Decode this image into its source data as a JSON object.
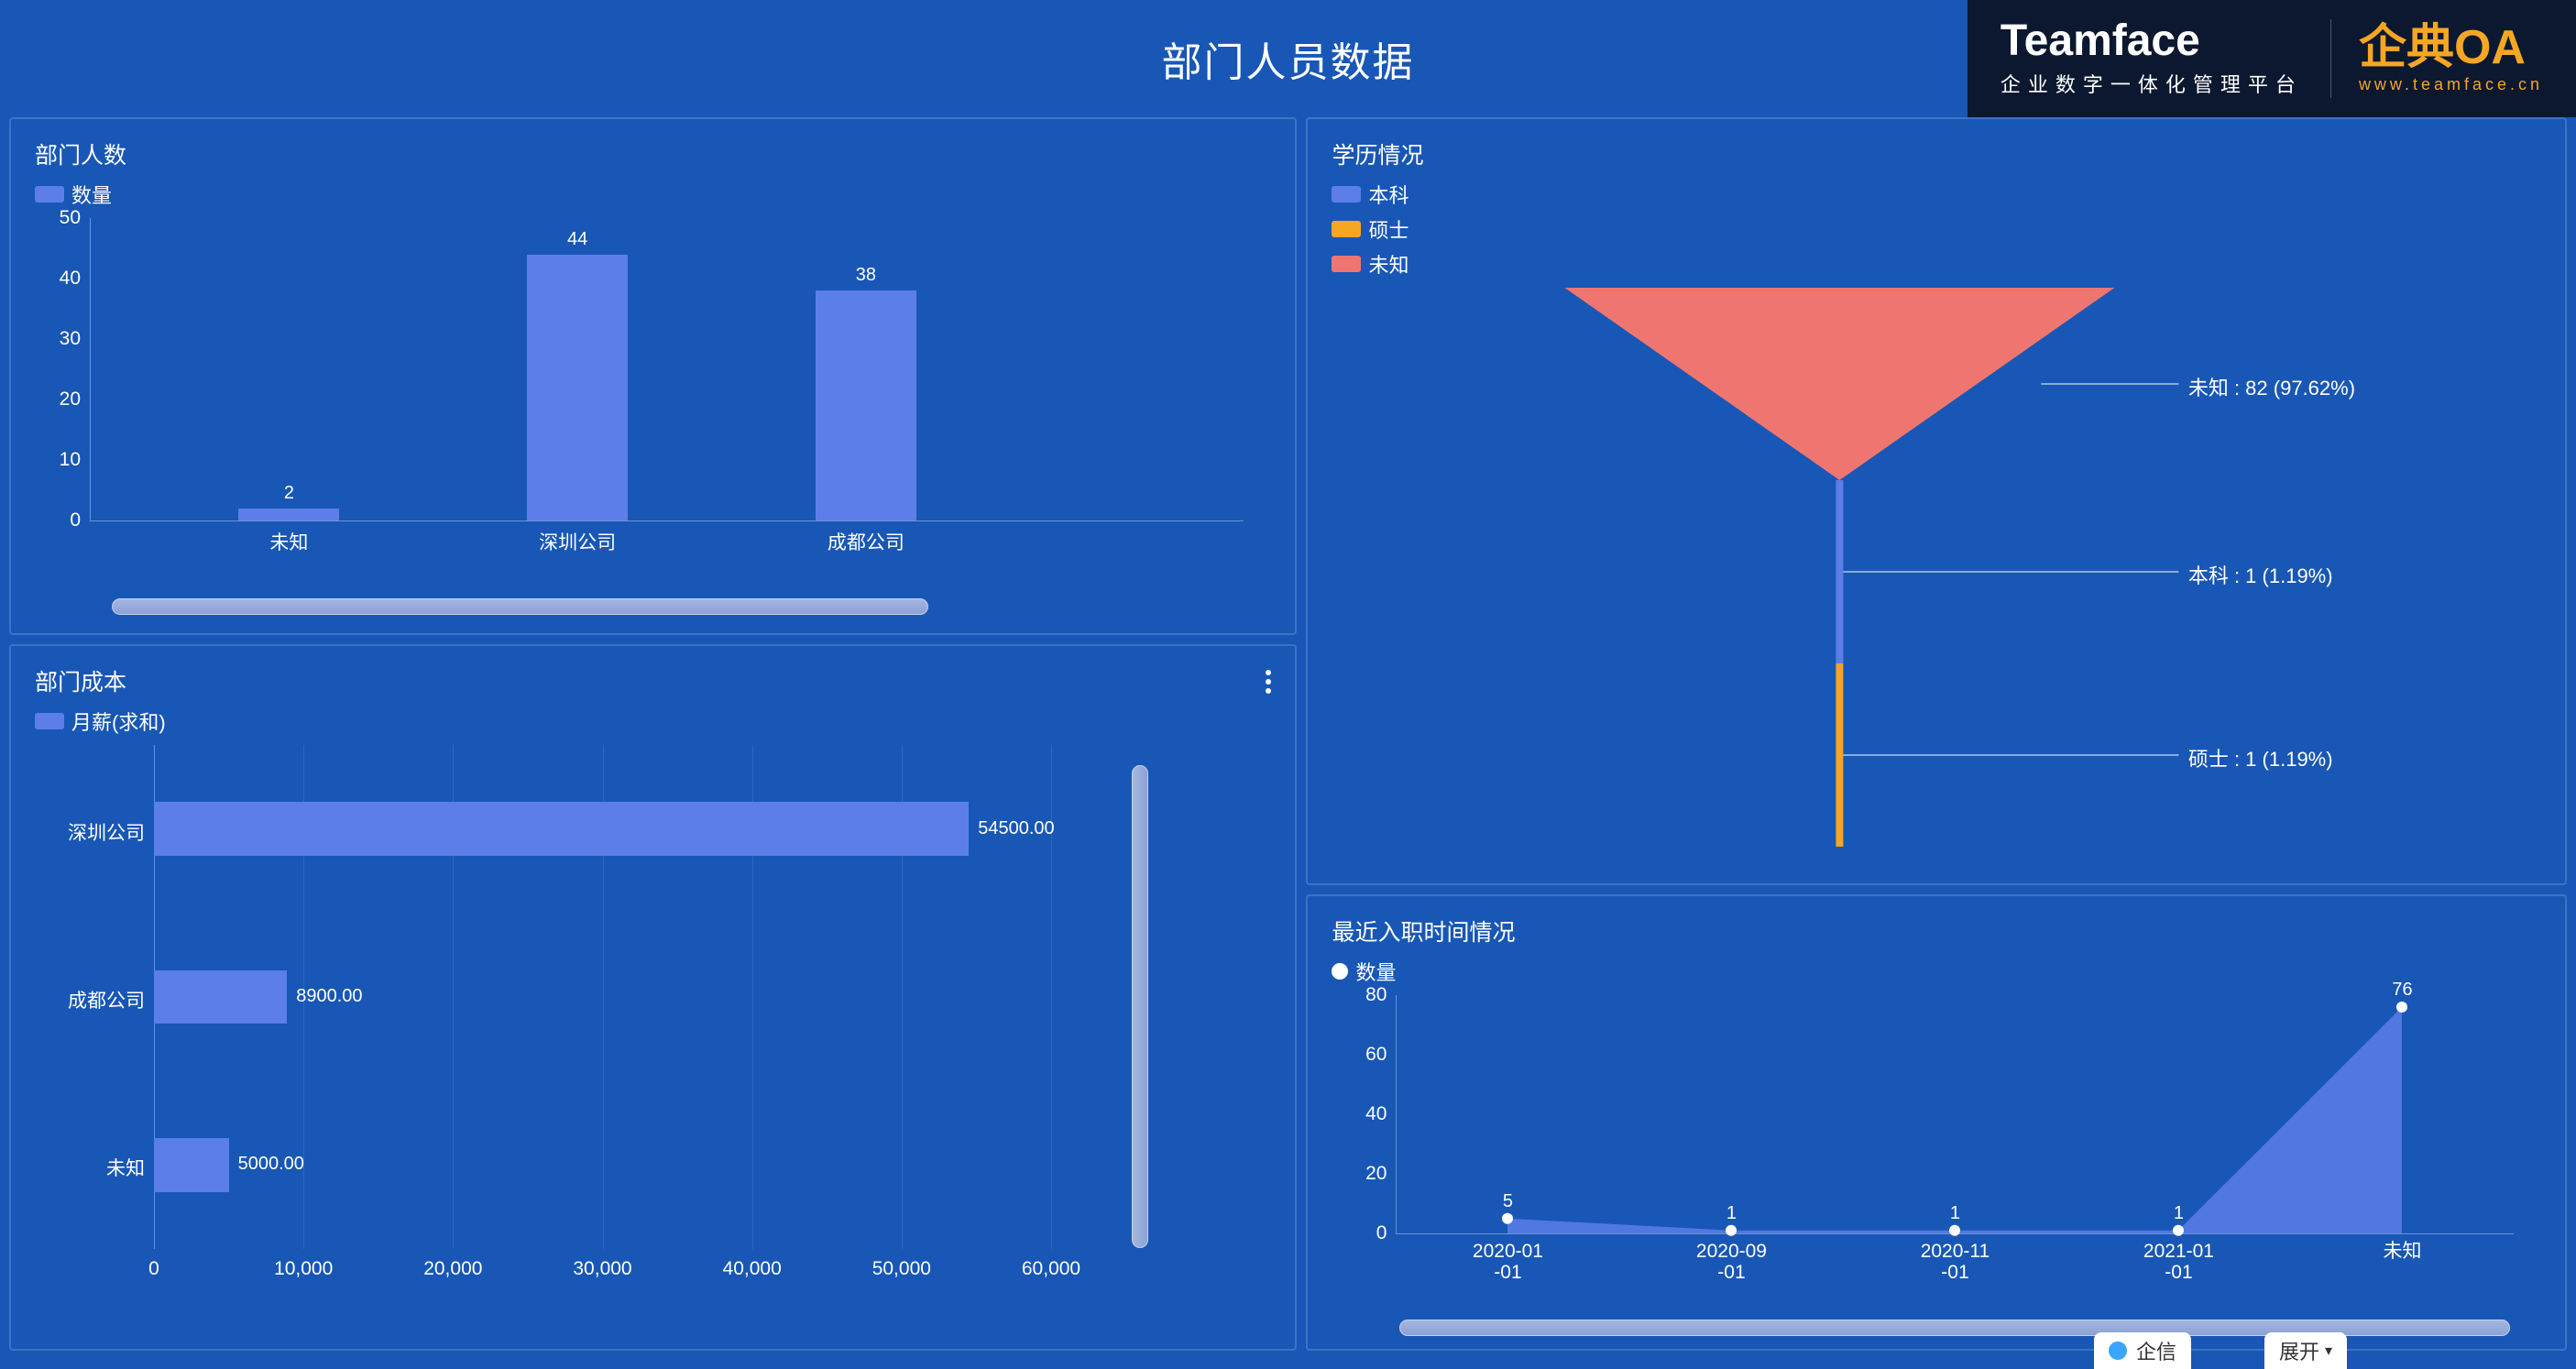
{
  "page": {
    "title": "部门人员数据",
    "background": "#1857b5",
    "panel_border": "#3c73c6"
  },
  "logo": {
    "brand": "Teamface",
    "brand_sub": "企业数字一体化管理平台",
    "suite": "企典OA",
    "url": "www.teamface.cn"
  },
  "panel_a": {
    "title": "部门人数",
    "legend_label": "数量",
    "legend_color": "#5c7ee8",
    "type": "bar",
    "categories": [
      "未知",
      "深圳公司",
      "成都公司"
    ],
    "values": [
      2,
      44,
      38
    ],
    "ylim": [
      0,
      50
    ],
    "ytick_step": 10,
    "bar_color": "#5c7ee8",
    "label_fontsize": 20,
    "axis_fontsize": 21,
    "bar_width_ratio": 0.16
  },
  "panel_b": {
    "title": "学历情况",
    "type": "funnel",
    "legend": [
      {
        "label": "本科",
        "color": "#5c7ee8"
      },
      {
        "label": "硕士",
        "color": "#f5a623"
      },
      {
        "label": "未知",
        "color": "#ef7670"
      }
    ],
    "segments": [
      {
        "name": "未知",
        "value": 82,
        "pct": "97.62%",
        "color": "#ef7670",
        "label": "未知 : 82 (97.62%)"
      },
      {
        "name": "本科",
        "value": 1,
        "pct": "1.19%",
        "color": "#5c7ee8",
        "label": "本科 : 1 (1.19%)"
      },
      {
        "name": "硕士",
        "value": 1,
        "pct": "1.19%",
        "color": "#f5a623",
        "label": "硕士 : 1 (1.19%)"
      }
    ]
  },
  "panel_c": {
    "title": "部门成本",
    "legend_label": "月薪(求和)",
    "legend_color": "#5c7ee8",
    "type": "bar_horizontal",
    "categories": [
      "深圳公司",
      "成都公司",
      "未知"
    ],
    "values": [
      54500.0,
      8900.0,
      5000.0
    ],
    "value_labels": [
      "54500.00",
      "8900.00",
      "5000.00"
    ],
    "xlim": [
      0,
      60000
    ],
    "xtick_step": 10000,
    "xtick_labels": [
      "0",
      "10,000",
      "20,000",
      "30,000",
      "40,000",
      "50,000",
      "60,000"
    ],
    "bar_color": "#5c7ee8",
    "grid_color": "#3c73c6"
  },
  "panel_d": {
    "title": "最近入职时间情况",
    "legend_label": "数量",
    "type": "area",
    "categories": [
      "2020-01\n-01",
      "2020-09\n-01",
      "2020-11\n-01",
      "2021-01\n-01",
      "未知"
    ],
    "values": [
      5,
      1,
      1,
      1,
      76
    ],
    "ylim": [
      0,
      80
    ],
    "ytick_step": 20,
    "fill_color": "#5c7ee8",
    "marker_color": "#ffffff",
    "marker_style": "circle"
  },
  "chat": {
    "label": "企信",
    "expand": "展开"
  }
}
